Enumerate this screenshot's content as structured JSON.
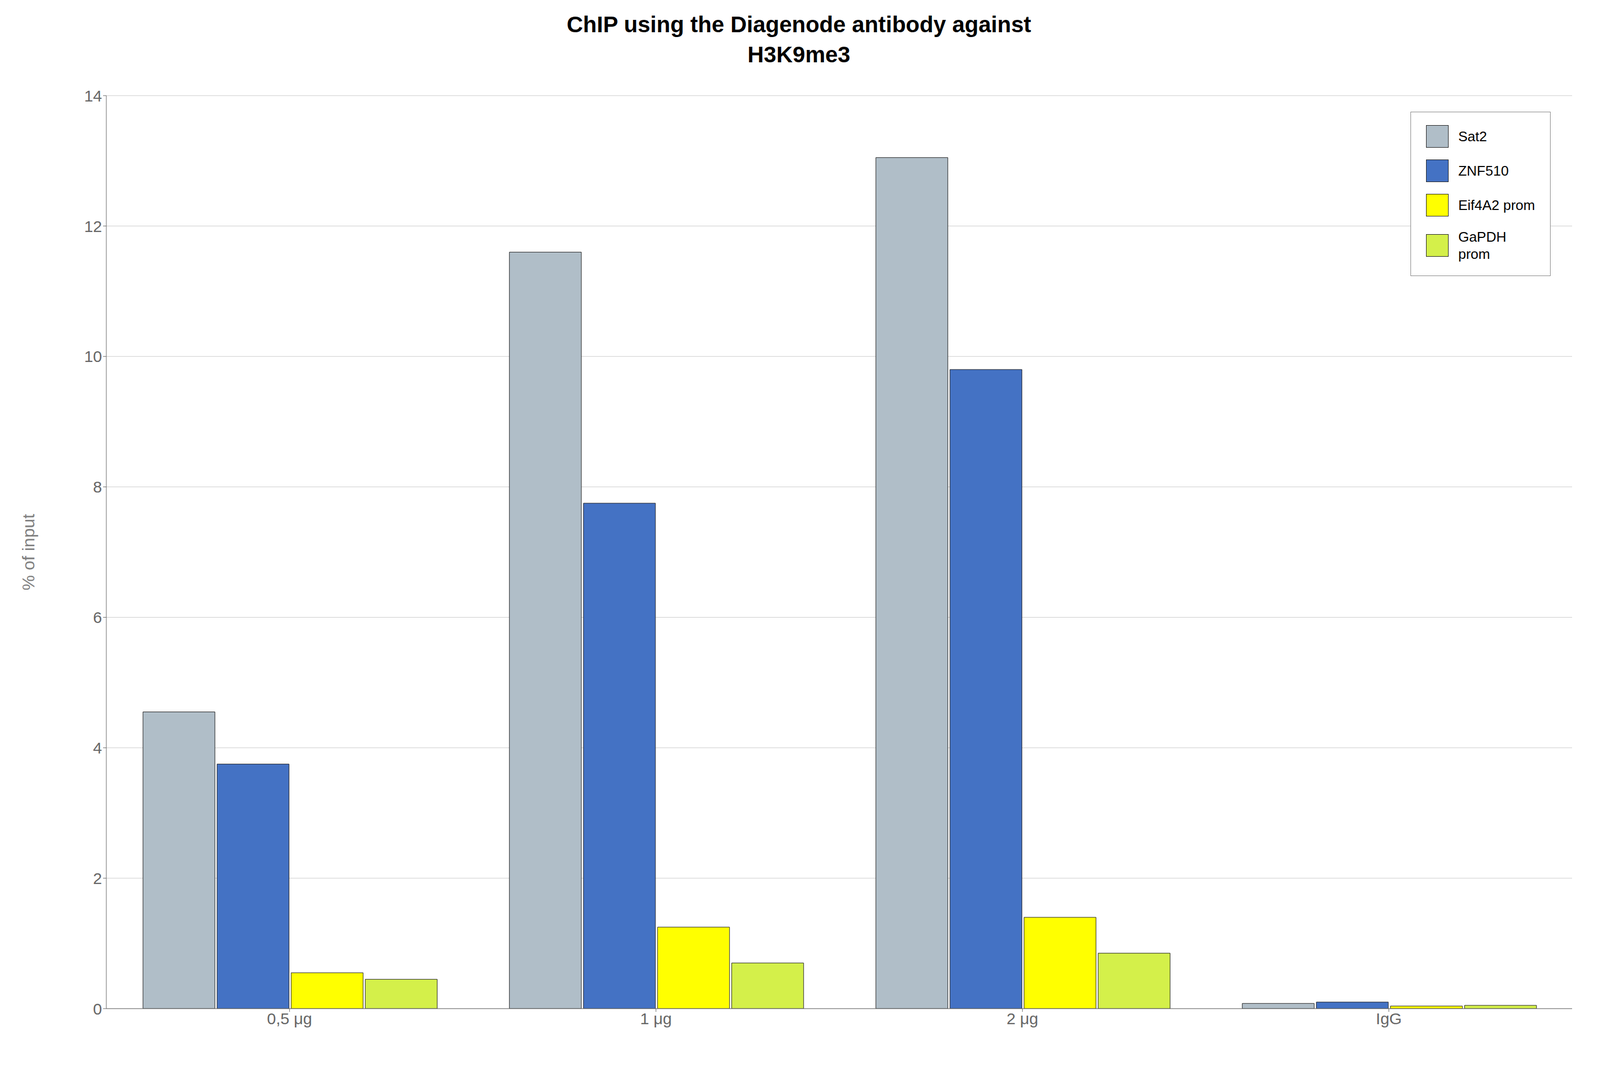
{
  "chart_data": {
    "type": "bar",
    "title": "ChIP using the Diagenode antibody against\nH3K9me3",
    "ylabel": "% of input",
    "categories": [
      "0,5 μg",
      "1 μg",
      "2 μg",
      "IgG"
    ],
    "series": [
      {
        "name": "Sat2",
        "color": "#b0bec8",
        "values": [
          4.55,
          11.6,
          13.05,
          0.08
        ]
      },
      {
        "name": "ZNF510",
        "color": "#4472c4",
        "values": [
          3.75,
          7.75,
          9.8,
          0.1
        ]
      },
      {
        "name": "Eif4A2 prom",
        "color": "#ffff00",
        "values": [
          0.55,
          1.25,
          1.4,
          0.04
        ]
      },
      {
        "name": "GaPDH\nprom",
        "color": "#d4f04a",
        "values": [
          0.45,
          0.7,
          0.85,
          0.05
        ]
      }
    ],
    "ylim": [
      0,
      14
    ],
    "yticks": [
      0,
      2,
      4,
      6,
      8,
      10,
      12,
      14
    ],
    "grid": true,
    "legend": "upper right"
  }
}
